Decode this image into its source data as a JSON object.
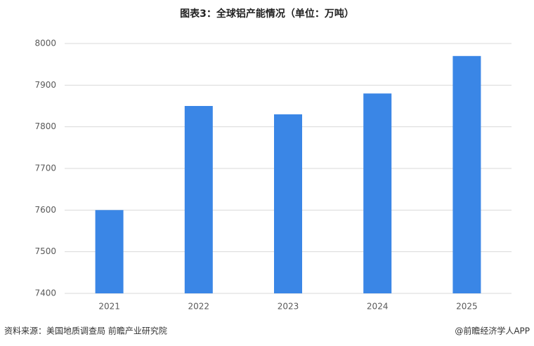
{
  "chart_data": {
    "type": "bar",
    "title": "图表3：全球铝产能情况（单位：万吨）",
    "categories": [
      "2021",
      "2022",
      "2023",
      "2024",
      "2025"
    ],
    "values": [
      7600,
      7850,
      7830,
      7880,
      7970
    ],
    "color": "#3a86e6",
    "ylim": [
      7400,
      8000
    ],
    "yticks": [
      7400,
      7500,
      7600,
      7700,
      7800,
      7900,
      8000
    ],
    "grid": true,
    "source": "资料来源：美国地质调查局  前瞻产业研究院",
    "credit": "@前瞻经济学人APP"
  }
}
